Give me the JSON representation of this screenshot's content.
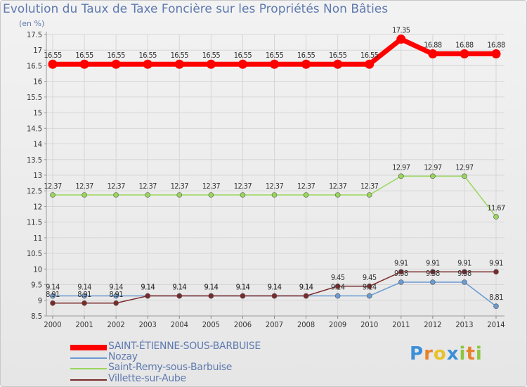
{
  "chart_data": {
    "type": "line",
    "title": "Evolution du Taux de Taxe Foncière sur les Propriétés Non Bâties",
    "ylabel": "(en %)",
    "xlabel": "",
    "ylim": [
      8.5,
      17.5
    ],
    "ytick_step": 0.5,
    "ytick_labels": [
      "8.5",
      "9",
      "9.5",
      "10",
      "10.5",
      "11",
      "11.5",
      "12",
      "12.5",
      "13",
      "13.5",
      "14",
      "14.5",
      "15",
      "15.5",
      "16",
      "16.5",
      "17",
      "17.5"
    ],
    "x": [
      "2000",
      "2001",
      "2002",
      "2003",
      "2004",
      "2005",
      "2006",
      "2007",
      "2008",
      "2009",
      "2010",
      "2011",
      "2012",
      "2013",
      "2014"
    ],
    "legend_position": "bottom-left",
    "series": [
      {
        "name": "SAINT-ÉTIENNE-SOUS-BARBUISE",
        "color": "#ff0000",
        "values": [
          16.55,
          16.55,
          16.55,
          16.55,
          16.55,
          16.55,
          16.55,
          16.55,
          16.55,
          16.55,
          16.55,
          17.35,
          16.88,
          16.88,
          16.88
        ],
        "labels": [
          "16.55",
          "16.55",
          "16.55",
          "16.55",
          "16.55",
          "16.55",
          "16.55",
          "16.55",
          "16.55",
          "16.55",
          "16.55",
          "17.35",
          "16.88",
          "16.88",
          "16.88"
        ]
      },
      {
        "name": "Nozay",
        "color": "#6b9bd1",
        "values": [
          9.14,
          9.14,
          9.14,
          9.14,
          9.14,
          9.14,
          9.14,
          9.14,
          9.14,
          9.14,
          9.14,
          9.58,
          9.58,
          9.58,
          8.81
        ],
        "labels": [
          "9.14",
          "9.14",
          "9.14",
          "9.14",
          "9.14",
          "9.14",
          "9.14",
          "9.14",
          "9.14",
          "9.14",
          "9.14",
          "9.58",
          "9.58",
          "9.58",
          "8.81"
        ]
      },
      {
        "name": "Saint-Remy-sous-Barbuise",
        "color": "#99d65c",
        "values": [
          12.37,
          12.37,
          12.37,
          12.37,
          12.37,
          12.37,
          12.37,
          12.37,
          12.37,
          12.37,
          12.37,
          12.97,
          12.97,
          12.97,
          11.67
        ],
        "labels": [
          "12.37",
          "12.37",
          "12.37",
          "12.37",
          "12.37",
          "12.37",
          "12.37",
          "12.37",
          "12.37",
          "12.37",
          "12.37",
          "12.97",
          "12.97",
          "12.97",
          "11.67"
        ]
      },
      {
        "name": "Villette-sur-Aube",
        "color": "#7a2a2a",
        "values": [
          8.91,
          8.91,
          8.91,
          9.14,
          9.14,
          9.14,
          9.14,
          9.14,
          9.14,
          9.45,
          9.45,
          9.91,
          9.91,
          9.91,
          9.91
        ],
        "labels": [
          "8.91",
          "8.91",
          "8.91",
          "9.14",
          "9.14",
          "9.14",
          "9.14",
          "9.14",
          "9.14",
          "9.45",
          "9.45",
          "9.91",
          "9.91",
          "9.91",
          "9.91"
        ]
      }
    ]
  },
  "logo": {
    "letters": [
      "P",
      "r",
      "o",
      "x",
      "i",
      "t",
      "i"
    ],
    "colors": [
      "#3a8fd8",
      "#e8822a",
      "#e8c22a",
      "#3a8fd8",
      "#8cc63f",
      "#e8822a",
      "#8cc63f"
    ]
  }
}
